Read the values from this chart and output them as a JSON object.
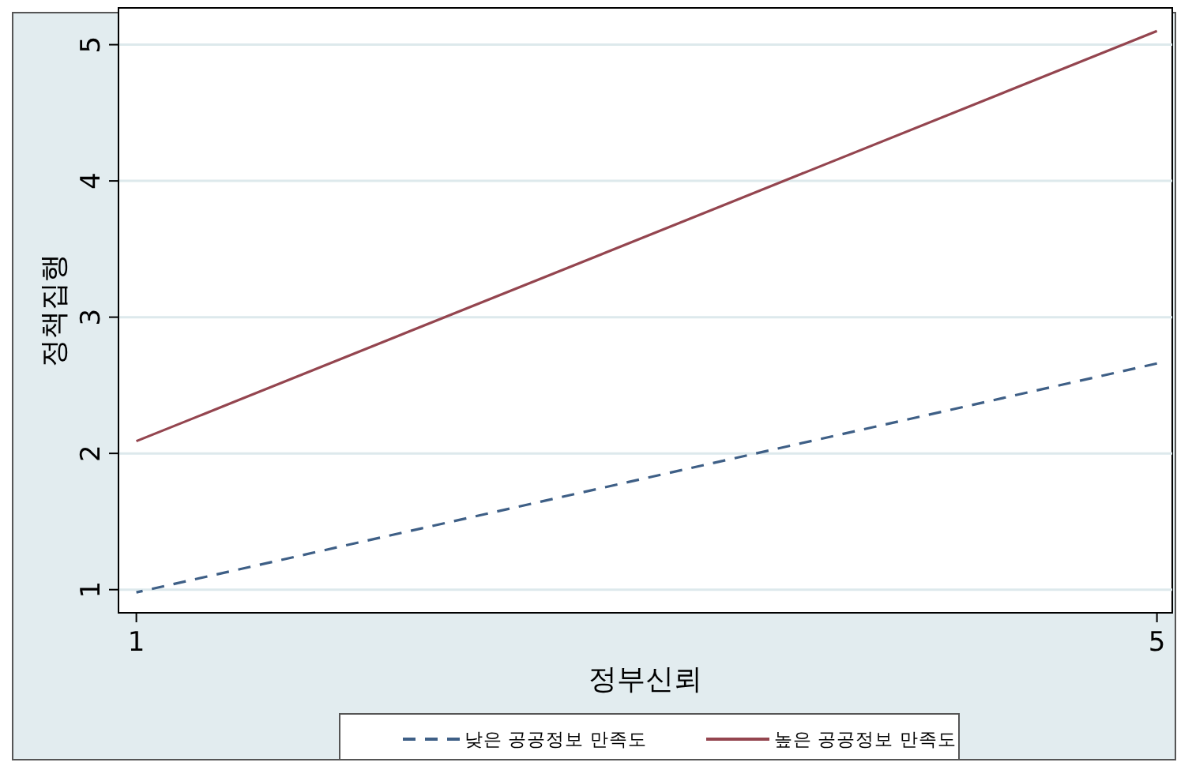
{
  "chart_data": {
    "type": "line",
    "xlabel": "정부신뢰",
    "ylabel": "정책집행",
    "x": [
      1,
      5
    ],
    "series": [
      {
        "name": "낮은 공공정보 만족도",
        "color": "#3e5f86",
        "values": [
          0.98,
          2.66
        ],
        "line_style": "dashed"
      },
      {
        "name": "높은 공공정보 만족도",
        "color": "#94454f",
        "values": [
          2.09,
          5.1
        ],
        "line_style": "solid"
      }
    ],
    "xlim": [
      0.93,
      5.06
    ],
    "xticks": [
      1,
      5
    ],
    "ylim": [
      0.83,
      5.27
    ],
    "yticks": [
      1,
      2,
      3,
      4,
      5
    ],
    "grid": "y",
    "legend": "bottom",
    "marker": "none"
  }
}
